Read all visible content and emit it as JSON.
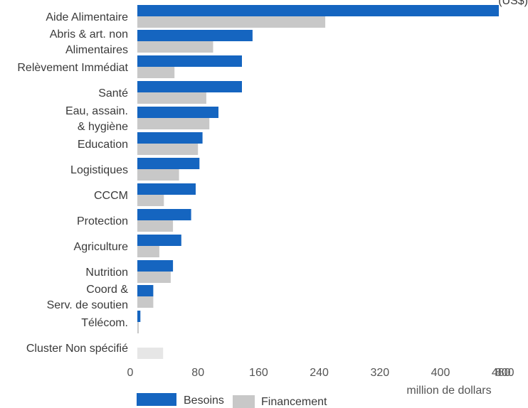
{
  "chart_data": {
    "type": "bar",
    "orientation": "horizontal",
    "categories": [
      [
        "Aide Alimentaire"
      ],
      [
        "Abris & art. non",
        "Alimentaires"
      ],
      [
        "Relèvement Immédiat"
      ],
      [
        "Santé"
      ],
      [
        "Eau, assain.",
        "& hygiène"
      ],
      [
        "Education"
      ],
      [
        "Logistiques"
      ],
      [
        "CCCM"
      ],
      [
        "Protection"
      ],
      [
        "Agriculture"
      ],
      [
        "Nutrition"
      ],
      [
        "Coord &",
        "Serv. de soutien"
      ],
      [
        "Télécom."
      ],
      [
        "Cluster Non spécifié"
      ]
    ],
    "series": [
      {
        "name": "Besoins",
        "color": "#1565c0",
        "values": [
          477,
          152,
          138,
          138,
          107,
          86,
          82,
          77,
          71,
          58,
          47,
          21,
          4,
          0
        ]
      },
      {
        "name": "Financement",
        "color": "#c8c8c8",
        "values": [
          248,
          100,
          49,
          91,
          95,
          80,
          55,
          35,
          47,
          29,
          44,
          21,
          1,
          34
        ]
      }
    ],
    "xlim": [
      0,
      480
    ],
    "xticks": [
      "0",
      "80",
      "160",
      "240",
      "320",
      "400",
      "480",
      "800"
    ],
    "xtick_values": [
      0,
      80,
      160,
      240,
      320,
      400,
      480
    ],
    "extra_tick": {
      "label": "800",
      "at": 480
    },
    "xlabel": "million de dollars",
    "top_note": "(US$)",
    "unspecified_financing_color": "#e6e6e6",
    "legend_position": "bottom-left"
  }
}
